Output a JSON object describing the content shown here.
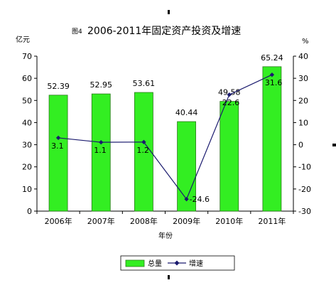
{
  "chart_data": {
    "type": "bar",
    "title_prefix": "图4",
    "title": "2006-2011年固定资产投资及增速",
    "xlabel": "年份",
    "ylabel_left": "亿元",
    "ylabel_right": "%",
    "categories": [
      "2006年",
      "2007年",
      "2008年",
      "2009年",
      "2010年",
      "2011年"
    ],
    "ylim_left": [
      0,
      70
    ],
    "yticks_left": [
      0,
      10,
      20,
      30,
      40,
      50,
      60,
      70
    ],
    "ylim_right": [
      -30,
      40
    ],
    "yticks_right": [
      -30,
      -20,
      -10,
      0,
      10,
      20,
      30,
      40
    ],
    "series": [
      {
        "name": "总量",
        "kind": "bar",
        "axis": "left",
        "color": "#33ee22",
        "edge_color": "#2a7a1a",
        "values": [
          52.39,
          52.95,
          53.61,
          40.44,
          49.58,
          65.24
        ],
        "labels": [
          "52.39",
          "52.95",
          "53.61",
          "40.44",
          "49.58",
          "65.24"
        ]
      },
      {
        "name": "增速",
        "kind": "line",
        "axis": "right",
        "color": "#1a1a6e",
        "marker": "diamond",
        "values": [
          3.1,
          1.1,
          1.2,
          -24.6,
          22.6,
          31.6
        ],
        "labels": [
          "3.1",
          "1.1",
          "1.2",
          "-24.6",
          "22.6",
          "31.6"
        ]
      }
    ],
    "grid": false,
    "legend": "bottom"
  }
}
